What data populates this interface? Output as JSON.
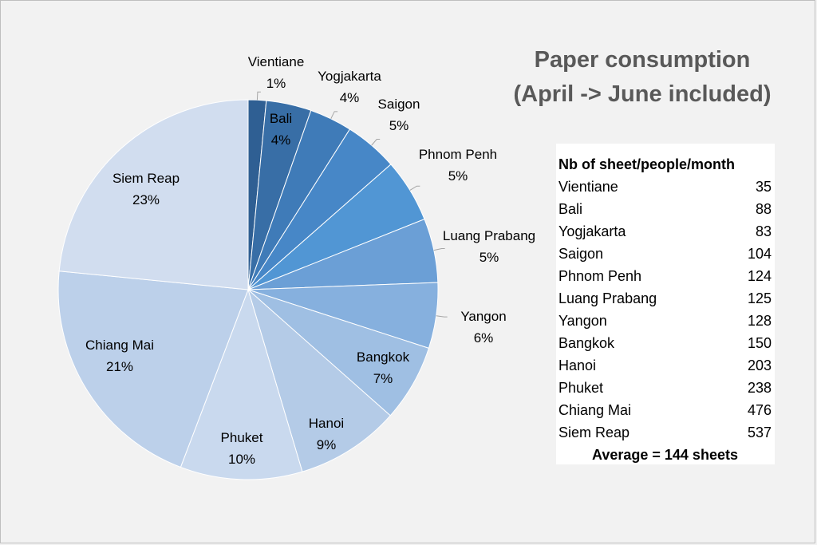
{
  "chart_data": {
    "type": "pie",
    "title": [
      "Paper consumption",
      "(April -> June included)"
    ],
    "slices": [
      {
        "label": "Vientiane",
        "value": 35,
        "percent_label": "1%",
        "color": "#2f5f93"
      },
      {
        "label": "Bali",
        "value": 88,
        "percent_label": "4%",
        "color": "#386ea6"
      },
      {
        "label": "Yogjakarta",
        "value": 83,
        "percent_label": "4%",
        "color": "#3f7bb8"
      },
      {
        "label": "Saigon",
        "value": 104,
        "percent_label": "5%",
        "color": "#4787c7"
      },
      {
        "label": "Phnom Penh",
        "value": 124,
        "percent_label": "5%",
        "color": "#5196d4"
      },
      {
        "label": "Luang Prabang",
        "value": 125,
        "percent_label": "5%",
        "color": "#6b9fd6"
      },
      {
        "label": "Yangon",
        "value": 128,
        "percent_label": "6%",
        "color": "#86b0de"
      },
      {
        "label": "Bangkok",
        "value": 150,
        "percent_label": "7%",
        "color": "#9fbfe3"
      },
      {
        "label": "Hanoi",
        "value": 203,
        "percent_label": "9%",
        "color": "#b4cbe7"
      },
      {
        "label": "Phuket",
        "value": 238,
        "percent_label": "10%",
        "color": "#c9d9ee"
      },
      {
        "label": "Chiang Mai",
        "value": 476,
        "percent_label": "21%",
        "color": "#bcd0ea"
      },
      {
        "label": "Siem Reap",
        "value": 537,
        "percent_label": "23%",
        "color": "#d1ddef"
      }
    ]
  },
  "table": {
    "header": "Nb of sheet/people/month",
    "rows": [
      {
        "city": "Vientiane",
        "value": "35"
      },
      {
        "city": "Bali",
        "value": "88"
      },
      {
        "city": "Yogjakarta",
        "value": "83"
      },
      {
        "city": "Saigon",
        "value": "104"
      },
      {
        "city": "Phnom Penh",
        "value": "124"
      },
      {
        "city": "Luang Prabang",
        "value": "125"
      },
      {
        "city": "Yangon",
        "value": "128"
      },
      {
        "city": "Bangkok",
        "value": "150"
      },
      {
        "city": "Hanoi",
        "value": "203"
      },
      {
        "city": "Phuket",
        "value": "238"
      },
      {
        "city": "Chiang Mai",
        "value": "476"
      },
      {
        "city": "Siem Reap",
        "value": "537"
      }
    ],
    "average": "Average = 144 sheets"
  }
}
